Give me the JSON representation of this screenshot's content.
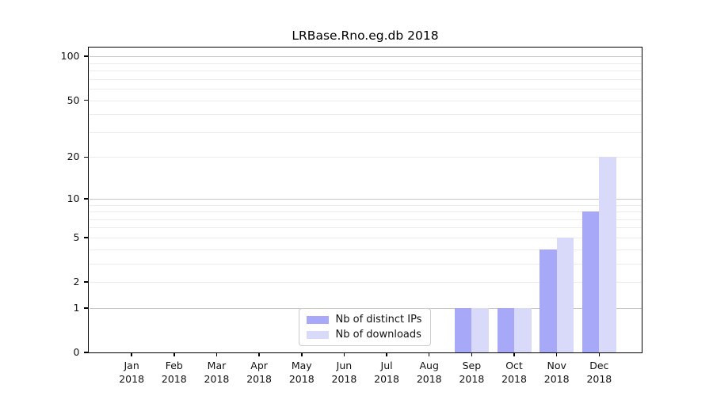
{
  "figure": {
    "title": "LRBase.Rno.eg.db 2018"
  },
  "chart_data": {
    "type": "bar",
    "title": "LRBase.Rno.eg.db 2018",
    "categories": [
      "Jan",
      "Feb",
      "Mar",
      "Apr",
      "May",
      "Jun",
      "Jul",
      "Aug",
      "Sep",
      "Oct",
      "Nov",
      "Dec"
    ],
    "x_tick_second_line": "2018",
    "series": [
      {
        "name": "Nb of distinct IPs",
        "color": "#a8a8f8",
        "values": [
          0,
          0,
          0,
          0,
          0,
          0,
          0,
          0,
          1,
          1,
          4,
          8
        ]
      },
      {
        "name": "Nb of downloads",
        "color": "#d9d9fa",
        "values": [
          0,
          0,
          0,
          0,
          0,
          0,
          0,
          0,
          1,
          1,
          5,
          20
        ]
      }
    ],
    "xlabel": "",
    "ylabel": "",
    "yscale": "log1p",
    "ylim": [
      0,
      100
    ],
    "yticks": [
      {
        "value": 0,
        "label": "0"
      },
      {
        "value": 1,
        "label": "1"
      },
      {
        "value": 2,
        "label": "2"
      },
      {
        "value": 5,
        "label": "5"
      },
      {
        "value": 10,
        "label": "10"
      },
      {
        "value": 20,
        "label": "20"
      },
      {
        "value": 50,
        "label": "50"
      },
      {
        "value": 100,
        "label": "100"
      }
    ],
    "major_gridlines": [
      1,
      10,
      100
    ],
    "minor_gridlines": [
      2,
      3,
      4,
      5,
      6,
      7,
      8,
      9,
      20,
      30,
      40,
      50,
      60,
      70,
      80,
      90
    ],
    "grid": true,
    "legend_position": "lower center"
  },
  "colors": {
    "grid_major": "#c8c8c8",
    "grid_minor": "#ececec",
    "spine": "#000000",
    "tick_label": "#111111",
    "legend_border": "#cccccc"
  }
}
